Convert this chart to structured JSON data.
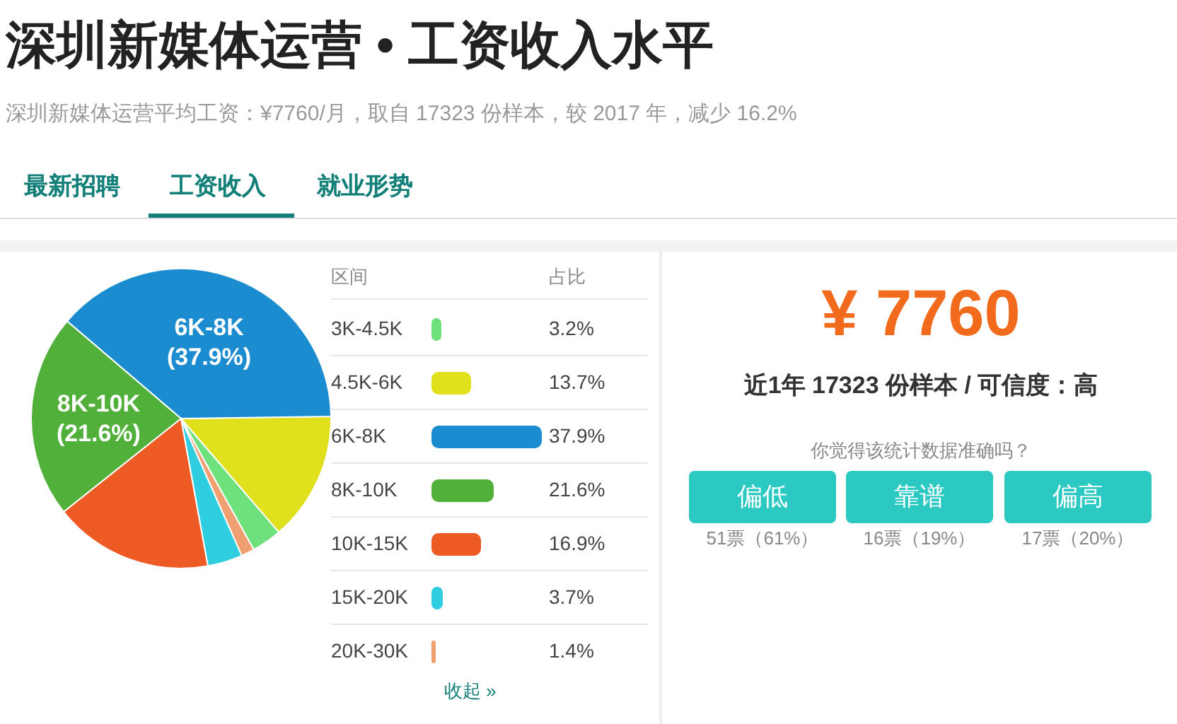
{
  "chart_data": {
    "type": "pie",
    "title": "深圳新媒体运营 • 工资收入水平",
    "subtitle": "深圳新媒体运营平均工资：¥7760/月，取自 17323 份样本，较 2017 年，减少 16.2%",
    "categories": [
      "3K-4.5K",
      "4.5K-6K",
      "6K-8K",
      "8K-10K",
      "10K-15K",
      "15K-20K",
      "20K-30K"
    ],
    "values": [
      3.2,
      13.7,
      37.9,
      21.6,
      16.9,
      3.7,
      1.4
    ],
    "colors": [
      "#6ee07c",
      "#e0e01c",
      "#1a8ccf",
      "#50b03a",
      "#ee5a24",
      "#2ecde0",
      "#f0a070"
    ],
    "value_labels": [
      null,
      null,
      "6K-8K\n(37.9%)",
      "8K-10K\n(21.6%)",
      null,
      null,
      null
    ],
    "legend": "right",
    "annotations": [
      "最新招聘",
      "工资收入",
      "就业形势",
      "区间",
      "占比",
      "收起 »",
      "¥ 7760",
      "近1年 17323 份样本 / 可信度：高",
      "你觉得该统计数据准确吗？",
      "偏低",
      "靠谱",
      "偏高",
      "51票（61%）",
      "16票（19%）",
      "17票（20%）",
      "3.2%",
      "13.7%",
      "37.9%",
      "21.6%",
      "16.9%",
      "3.7%",
      "1.4%"
    ]
  }
}
